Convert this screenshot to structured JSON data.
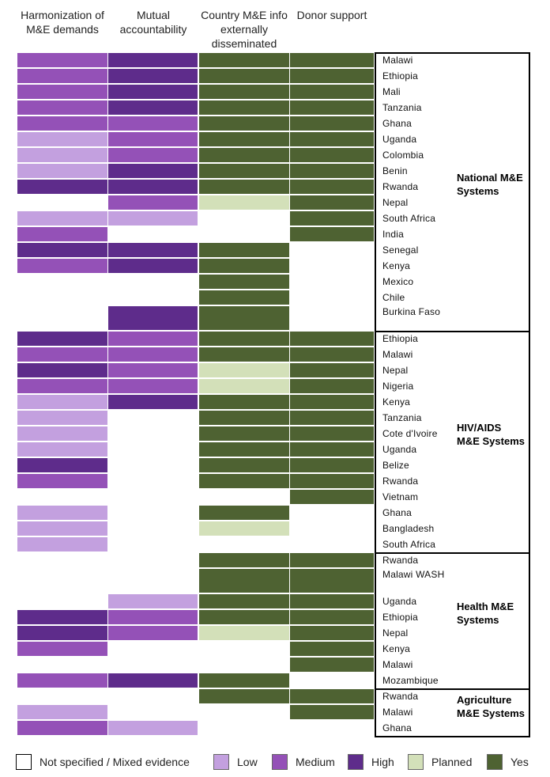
{
  "headers": [
    "Harmonization of M&E demands",
    "Mutual accountability",
    "Country M&E info externally disseminated",
    "Donor support"
  ],
  "colors": {
    "none": "#ffffff",
    "low": "#c3a0df",
    "medium": "#9451b7",
    "high": "#5e2c8b",
    "planned": "#d3e0b9",
    "yes": "#4e6232"
  },
  "groups": [
    {
      "label": "National M&E Systems",
      "rows": [
        {
          "country": "Malawi",
          "values": [
            "medium",
            "high",
            "yes",
            "yes"
          ]
        },
        {
          "country": "Ethiopia",
          "values": [
            "medium",
            "high",
            "yes",
            "yes"
          ]
        },
        {
          "country": "Mali",
          "values": [
            "medium",
            "high",
            "yes",
            "yes"
          ]
        },
        {
          "country": "Tanzania",
          "values": [
            "medium",
            "high",
            "yes",
            "yes"
          ]
        },
        {
          "country": "Ghana",
          "values": [
            "medium",
            "medium",
            "yes",
            "yes"
          ]
        },
        {
          "country": "Uganda",
          "values": [
            "low",
            "medium",
            "yes",
            "yes"
          ]
        },
        {
          "country": "Colombia",
          "values": [
            "low",
            "medium",
            "yes",
            "yes"
          ]
        },
        {
          "country": "Benin",
          "values": [
            "low",
            "high",
            "yes",
            "yes"
          ]
        },
        {
          "country": "Rwanda",
          "values": [
            "high",
            "high",
            "yes",
            "yes"
          ]
        },
        {
          "country": "Nepal",
          "values": [
            "none",
            "medium",
            "planned",
            "yes"
          ]
        },
        {
          "country": "South Africa",
          "values": [
            "low",
            "low",
            "none",
            "yes"
          ]
        },
        {
          "country": "India",
          "values": [
            "medium",
            "none",
            "none",
            "yes"
          ]
        },
        {
          "country": "Senegal",
          "values": [
            "high",
            "high",
            "yes",
            "none"
          ]
        },
        {
          "country": "Kenya",
          "values": [
            "medium",
            "high",
            "yes",
            "none"
          ]
        },
        {
          "country": "Mexico",
          "values": [
            "none",
            "none",
            "yes",
            "none"
          ]
        },
        {
          "country": "Chile",
          "values": [
            "none",
            "none",
            "yes",
            "none"
          ]
        },
        {
          "country": "Burkina Faso",
          "values": [
            "none",
            "high",
            "yes",
            "none"
          ],
          "tall": true
        }
      ]
    },
    {
      "label": "HIV/AIDS M&E Systems",
      "rows": [
        {
          "country": "Ethiopia",
          "values": [
            "high",
            "medium",
            "yes",
            "yes"
          ]
        },
        {
          "country": "Malawi",
          "values": [
            "medium",
            "medium",
            "yes",
            "yes"
          ]
        },
        {
          "country": "Nepal",
          "values": [
            "high",
            "medium",
            "planned",
            "yes"
          ]
        },
        {
          "country": "Nigeria",
          "values": [
            "medium",
            "medium",
            "planned",
            "yes"
          ]
        },
        {
          "country": "Kenya",
          "values": [
            "low",
            "high",
            "yes",
            "yes"
          ]
        },
        {
          "country": "Tanzania",
          "values": [
            "low",
            "none",
            "yes",
            "yes"
          ]
        },
        {
          "country": "Cote d'Ivoire",
          "values": [
            "low",
            "none",
            "yes",
            "yes"
          ]
        },
        {
          "country": "Uganda",
          "values": [
            "low",
            "none",
            "yes",
            "yes"
          ]
        },
        {
          "country": "Belize",
          "values": [
            "high",
            "none",
            "yes",
            "yes"
          ]
        },
        {
          "country": "Rwanda",
          "values": [
            "medium",
            "none",
            "yes",
            "yes"
          ]
        },
        {
          "country": "Vietnam",
          "values": [
            "none",
            "none",
            "none",
            "yes"
          ]
        },
        {
          "country": "Ghana",
          "values": [
            "low",
            "none",
            "yes",
            "none"
          ]
        },
        {
          "country": "Bangladesh",
          "values": [
            "low",
            "none",
            "planned",
            "none"
          ]
        },
        {
          "country": "South Africa",
          "values": [
            "low",
            "none",
            "none",
            "none"
          ]
        }
      ]
    },
    {
      "label": "Health M&E Systems",
      "rows": [
        {
          "country": "Rwanda",
          "values": [
            "none",
            "none",
            "yes",
            "yes"
          ]
        },
        {
          "country": "Malawi WASH",
          "values": [
            "none",
            "none",
            "yes",
            "yes"
          ],
          "tall": true
        },
        {
          "country": "Uganda",
          "values": [
            "none",
            "low",
            "yes",
            "yes"
          ]
        },
        {
          "country": "Ethiopia",
          "values": [
            "high",
            "medium",
            "yes",
            "yes"
          ]
        },
        {
          "country": "Nepal",
          "values": [
            "high",
            "medium",
            "planned",
            "yes"
          ]
        },
        {
          "country": "Kenya",
          "values": [
            "medium",
            "none",
            "none",
            "yes"
          ]
        },
        {
          "country": "Malawi",
          "values": [
            "none",
            "none",
            "none",
            "yes"
          ]
        },
        {
          "country": "Mozambique",
          "values": [
            "medium",
            "high",
            "yes",
            "none"
          ]
        }
      ]
    },
    {
      "label": "Agriculture M&E Systems",
      "rows": [
        {
          "country": "Rwanda",
          "values": [
            "none",
            "none",
            "yes",
            "yes"
          ]
        },
        {
          "country": "Malawi",
          "values": [
            "low",
            "none",
            "none",
            "yes"
          ]
        },
        {
          "country": "Ghana",
          "values": [
            "medium",
            "low",
            "none",
            "none"
          ]
        }
      ]
    }
  ],
  "legend": [
    {
      "key": "none",
      "label": "Not specified / Mixed evidence"
    },
    {
      "key": "low",
      "label": "Low"
    },
    {
      "key": "medium",
      "label": "Medium"
    },
    {
      "key": "high",
      "label": "High"
    },
    {
      "key": "planned",
      "label": "Planned"
    },
    {
      "key": "yes",
      "label": "Yes"
    }
  ]
}
